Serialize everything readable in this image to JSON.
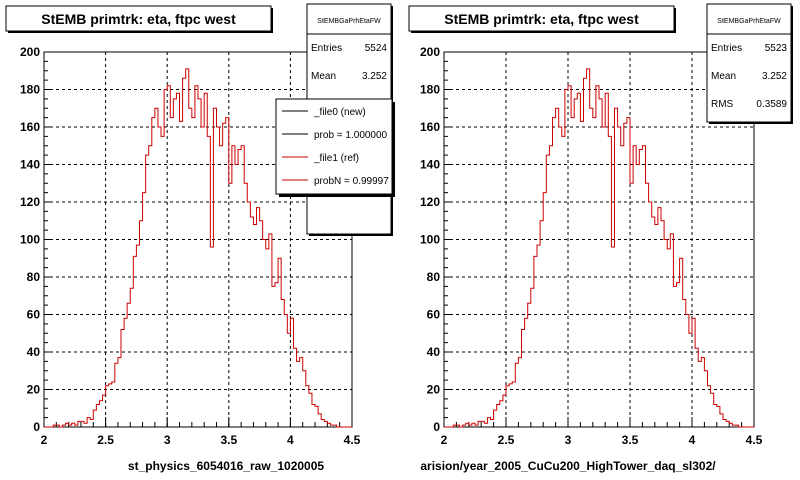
{
  "chart_data": [
    {
      "type": "histogram",
      "title": "StEMB primtrk: eta, ftpc west",
      "xlabel": "st_physics_6054016_raw_1020005",
      "xlim": [
        2,
        4.5
      ],
      "ylim": [
        0,
        200
      ],
      "xticks": [
        "2",
        "2.5",
        "3",
        "3.5",
        "4",
        "4.5"
      ],
      "yticks": [
        "0",
        "20",
        "40",
        "60",
        "80",
        "100",
        "120",
        "140",
        "160",
        "180",
        "200"
      ],
      "grid": true,
      "stats": {
        "name": "StEMBGaPrhEtaFW",
        "entries_label": "Entries",
        "entries": "5524",
        "mean_label": "Mean",
        "mean": "3.252"
      },
      "legend": [
        "_file0 (new)",
        "prob = 1.000000",
        "_file1 (ref)",
        "probN = 0.99997"
      ],
      "series": [
        {
          "name": "_file1 (ref)",
          "color": "#cc0000",
          "bin_width": 0.025,
          "x_start": 2.0,
          "values": [
            0,
            0,
            0,
            1,
            1,
            0,
            1,
            2,
            1,
            2,
            1,
            3,
            3,
            2,
            5,
            4,
            9,
            12,
            14,
            17,
            22,
            23,
            24,
            34,
            37,
            52,
            58,
            66,
            74,
            91,
            97,
            110,
            125,
            145,
            150,
            165,
            170,
            160,
            155,
            180,
            182,
            165,
            175,
            178,
            163,
            186,
            191,
            170,
            165,
            182,
            175,
            160,
            178,
            155,
            96,
            170,
            160,
            150,
            162,
            165,
            130,
            150,
            140,
            148,
            150,
            130,
            120,
            112,
            108,
            117,
            110,
            100,
            95,
            103,
            75,
            77,
            90,
            68,
            60,
            50,
            58,
            42,
            35,
            37,
            30,
            22,
            18,
            12,
            11,
            7,
            4,
            3,
            2,
            1,
            1,
            0,
            0,
            0,
            0,
            0
          ]
        }
      ]
    },
    {
      "type": "histogram",
      "title": "StEMB primtrk: eta, ftpc west",
      "xlabel": "arision/year_2005_CuCu200_HighTower_daq_sl302/",
      "xlim": [
        2,
        4.5
      ],
      "ylim": [
        0,
        200
      ],
      "xticks": [
        "2",
        "2.5",
        "3",
        "3.5",
        "4",
        "4.5"
      ],
      "yticks": [
        "0",
        "20",
        "40",
        "60",
        "80",
        "100",
        "120",
        "140",
        "160",
        "180",
        "200"
      ],
      "grid": true,
      "stats": {
        "name": "StEMBGaPrhEtaFW",
        "entries_label": "Entries",
        "entries": "5523",
        "mean_label": "Mean",
        "mean": "3.252",
        "rms_label": "RMS",
        "rms": "0.3589"
      },
      "series": [
        {
          "name": "_file0 (new)",
          "color": "#cc0000",
          "bin_width": 0.025,
          "x_start": 2.0,
          "values": [
            0,
            0,
            0,
            1,
            1,
            0,
            1,
            2,
            1,
            2,
            1,
            3,
            3,
            2,
            5,
            4,
            9,
            12,
            14,
            17,
            22,
            23,
            24,
            34,
            37,
            52,
            58,
            66,
            74,
            91,
            97,
            110,
            125,
            145,
            150,
            165,
            170,
            160,
            155,
            180,
            182,
            165,
            175,
            178,
            163,
            186,
            191,
            170,
            165,
            182,
            175,
            160,
            178,
            155,
            96,
            170,
            160,
            150,
            162,
            165,
            130,
            150,
            140,
            148,
            150,
            130,
            120,
            112,
            108,
            117,
            110,
            100,
            95,
            103,
            75,
            77,
            90,
            68,
            60,
            50,
            58,
            42,
            35,
            37,
            30,
            22,
            18,
            12,
            11,
            7,
            4,
            3,
            2,
            1,
            1,
            0,
            0,
            0,
            0,
            0
          ]
        }
      ]
    }
  ]
}
